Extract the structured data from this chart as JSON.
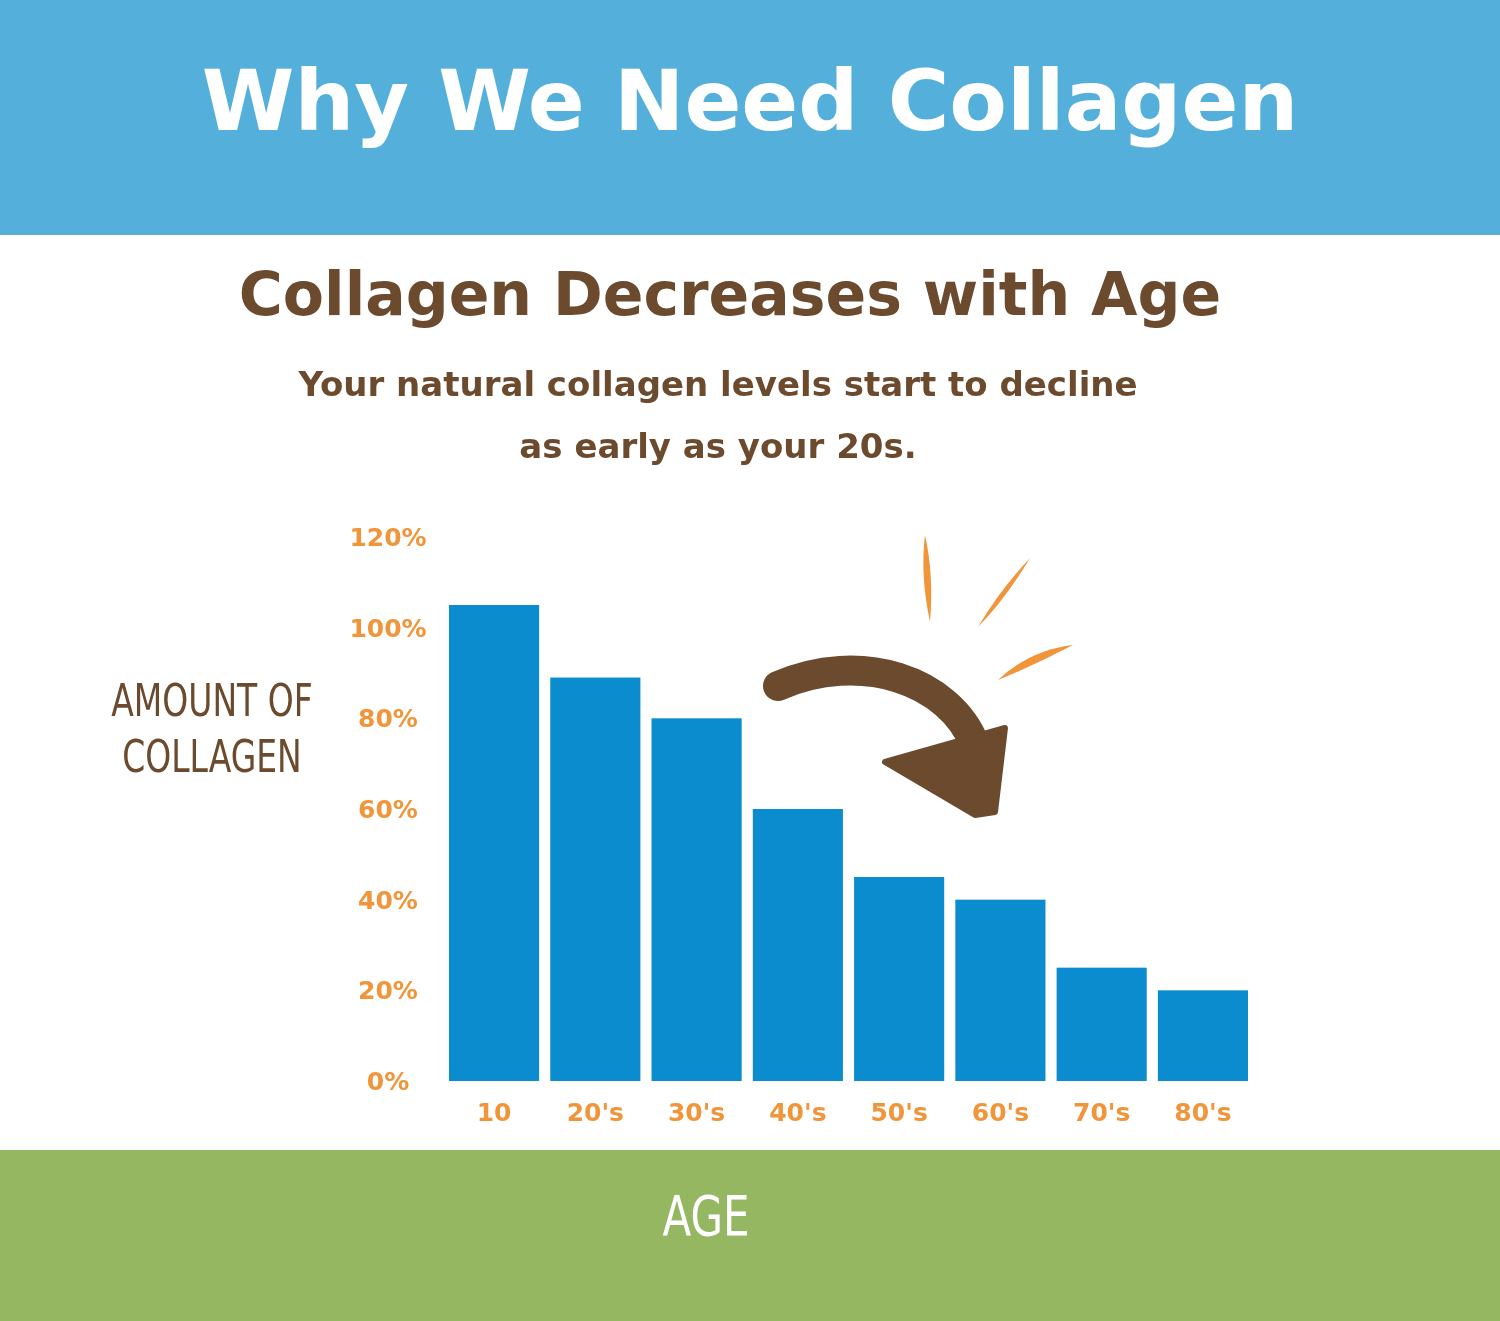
{
  "chart_data": {
    "type": "bar",
    "title": "Why We Need Collagen",
    "subtitle": "Collagen Decreases with Age",
    "annotations": [
      "Your natural collagen levels start to decline as early as your 20s."
    ],
    "xlabel": "AGE",
    "ylabel": "AMOUNT OF COLLAGEN",
    "categories": [
      "10",
      "20's",
      "30's",
      "40's",
      "50's",
      "60's",
      "70's",
      "80's"
    ],
    "values": [
      105,
      89,
      80,
      60,
      45,
      40,
      25,
      20
    ],
    "color": "#0a8ccf",
    "ylim": [
      0,
      120
    ],
    "yticks": [
      {
        "value": 0,
        "label": "0%"
      },
      {
        "value": 20,
        "label": "20%"
      },
      {
        "value": 40,
        "label": "40%"
      },
      {
        "value": 60,
        "label": "60%"
      },
      {
        "value": 80,
        "label": "80%"
      },
      {
        "value": 100,
        "label": "100%"
      },
      {
        "value": 120,
        "label": "120%"
      }
    ],
    "grid": false
  }
}
